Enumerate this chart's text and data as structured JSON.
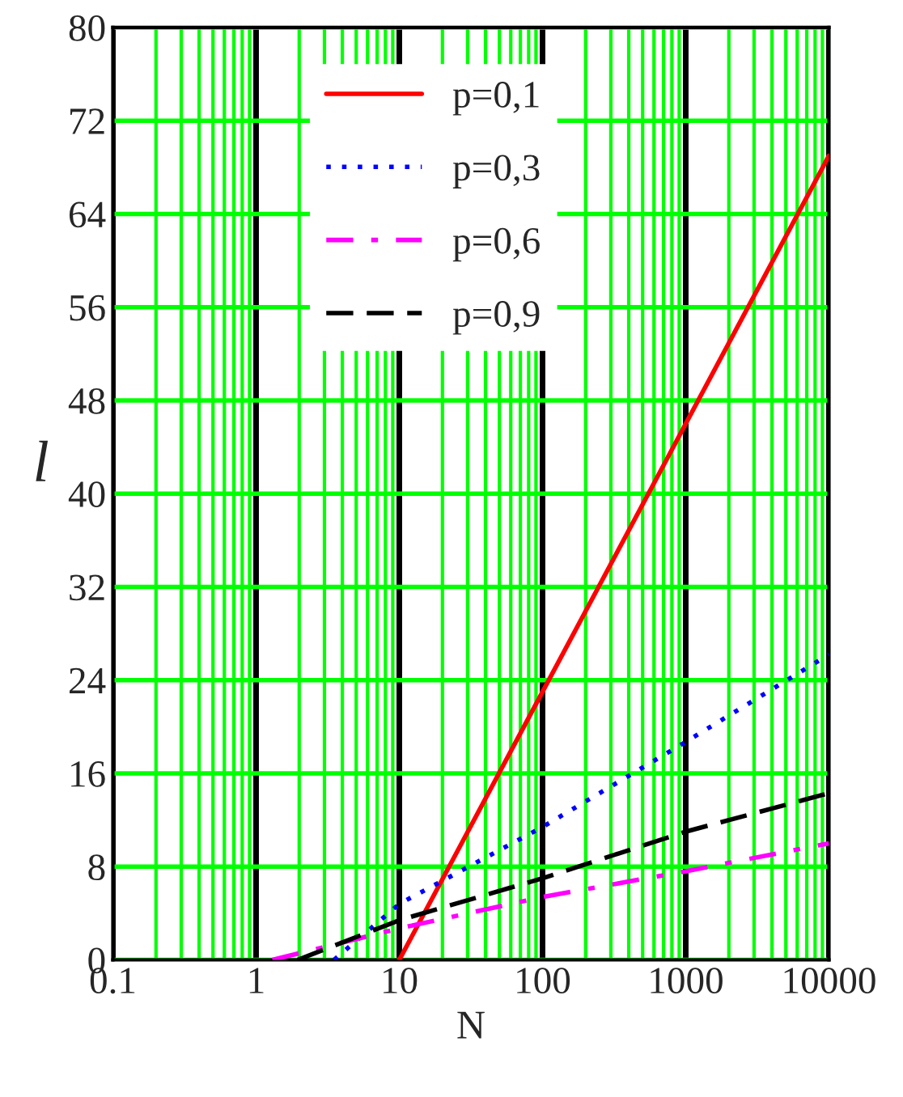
{
  "chart_data": {
    "type": "line",
    "xlabel": "N",
    "ylabel": "l",
    "log": "x",
    "xlim": [
      0.1,
      10000
    ],
    "xticks": [
      0.1,
      {
        "value": 0.2,
        "label": null
      },
      {
        "value": 0.3,
        "label": null
      },
      {
        "value": 0.4,
        "label": null
      },
      {
        "value": 0.5,
        "label": null
      },
      {
        "value": 0.6,
        "label": null
      },
      {
        "value": 0.7,
        "label": null
      },
      {
        "value": 0.8,
        "label": null
      },
      {
        "value": 0.9,
        "label": null
      },
      1,
      {
        "value": 2,
        "label": null
      },
      {
        "value": 3,
        "label": null
      },
      {
        "value": 4,
        "label": null
      },
      {
        "value": 5,
        "label": null
      },
      {
        "value": 6,
        "label": null
      },
      {
        "value": 7,
        "label": null
      },
      {
        "value": 8,
        "label": null
      },
      {
        "value": 9,
        "label": null
      },
      10,
      {
        "value": 20,
        "label": null
      },
      {
        "value": 30,
        "label": null
      },
      {
        "value": 40,
        "label": null
      },
      {
        "value": 50,
        "label": null
      },
      {
        "value": 60,
        "label": null
      },
      {
        "value": 70,
        "label": null
      },
      {
        "value": 80,
        "label": null
      },
      {
        "value": 90,
        "label": null
      },
      100,
      {
        "value": 200,
        "label": null
      },
      {
        "value": 300,
        "label": null
      },
      {
        "value": 400,
        "label": null
      },
      {
        "value": 500,
        "label": null
      },
      {
        "value": 600,
        "label": null
      },
      {
        "value": 700,
        "label": null
      },
      {
        "value": 800,
        "label": null
      },
      {
        "value": 900,
        "label": null
      },
      1000,
      {
        "value": 2000,
        "label": null
      },
      {
        "value": 3000,
        "label": null
      },
      {
        "value": 4000,
        "label": null
      },
      {
        "value": 5000,
        "label": null
      },
      {
        "value": 6000,
        "label": null
      },
      {
        "value": 7000,
        "label": null
      },
      {
        "value": 8000,
        "label": null
      },
      {
        "value": 9000,
        "label": null
      },
      10000
    ],
    "ylim": [
      0,
      80
    ],
    "yticks": [
      0,
      8,
      16,
      24,
      32,
      40,
      48,
      56,
      64,
      72,
      80
    ],
    "grid": true,
    "legend": "top left",
    "series": [
      {
        "name": "p=0,1",
        "color": "#ff0000",
        "line_style": "solid",
        "x": [
          10,
          100,
          1000,
          10000
        ],
        "values": [
          0,
          23,
          46,
          69
        ]
      },
      {
        "name": "p=0,3",
        "color": "#0000ff",
        "line_style": "dotted",
        "x": [
          3.5,
          10,
          100,
          1000,
          10000
        ],
        "values": [
          0,
          4.8,
          11.4,
          18.7,
          26.2
        ]
      },
      {
        "name": "p=0,6",
        "color": "#ff00ff",
        "line_style": "dashdot",
        "x": [
          1.3,
          10,
          100,
          1000,
          10000
        ],
        "values": [
          0,
          2.7,
          5.4,
          7.6,
          10
        ]
      },
      {
        "name": "p=0,9",
        "color": "#000000",
        "line_style": "dashed",
        "x": [
          1.95,
          10,
          100,
          1000,
          10000
        ],
        "values": [
          0,
          3.4,
          7,
          11,
          14.3
        ]
      }
    ]
  }
}
